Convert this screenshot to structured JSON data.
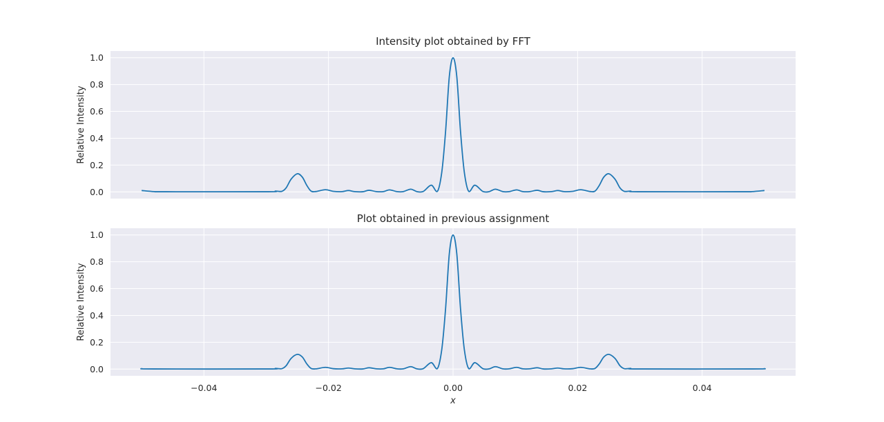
{
  "chart_data": [
    {
      "type": "line",
      "title": "Intensity plot obtained by FFT",
      "xlabel": "",
      "ylabel": "Relative Intensity",
      "xlim": [
        -0.055,
        0.055
      ],
      "ylim": [
        -0.05,
        1.05
      ],
      "xticks": [
        -0.04,
        -0.02,
        0.0,
        0.02,
        0.04
      ],
      "xtick_labels": [],
      "yticks": [
        0.0,
        0.2,
        0.4,
        0.6,
        0.8,
        1.0
      ],
      "ytick_labels": [
        "0.0",
        "0.2",
        "0.4",
        "0.6",
        "0.8",
        "1.0"
      ],
      "grid": true,
      "background": "#eaeaf2",
      "line_color": "#1f77b4",
      "series": [
        {
          "x_range": [
            -0.05,
            0.05
          ],
          "points": [
            [
              -0.05,
              0.01
            ],
            [
              -0.048,
              0.002
            ],
            [
              -0.046,
              0.001
            ],
            [
              -0.03,
              0.001
            ],
            [
              -0.0285,
              0.006
            ],
            [
              -0.0275,
              0.004
            ],
            [
              -0.0268,
              0.03
            ],
            [
              -0.026,
              0.095
            ],
            [
              -0.025,
              0.135
            ],
            [
              -0.0242,
              0.11
            ],
            [
              -0.0235,
              0.05
            ],
            [
              -0.0228,
              0.006
            ],
            [
              -0.022,
              0.003
            ],
            [
              -0.0205,
              0.016
            ],
            [
              -0.0192,
              0.004
            ],
            [
              -0.0178,
              0.002
            ],
            [
              -0.0168,
              0.01
            ],
            [
              -0.0158,
              0.002
            ],
            [
              -0.0145,
              0.001
            ],
            [
              -0.0135,
              0.012
            ],
            [
              -0.0123,
              0.002
            ],
            [
              -0.0112,
              0.002
            ],
            [
              -0.0102,
              0.015
            ],
            [
              -0.009,
              0.002
            ],
            [
              -0.008,
              0.002
            ],
            [
              -0.0068,
              0.02
            ],
            [
              -0.0058,
              0.002
            ],
            [
              -0.0048,
              0.003
            ],
            [
              -0.0035,
              0.05
            ],
            [
              -0.0025,
              0.005
            ],
            [
              -0.0018,
              0.15
            ],
            [
              -0.0012,
              0.45
            ],
            [
              -0.0006,
              0.86
            ],
            [
              0.0,
              1.0
            ],
            [
              0.0006,
              0.86
            ],
            [
              0.0012,
              0.45
            ],
            [
              0.0018,
              0.15
            ],
            [
              0.0025,
              0.005
            ],
            [
              0.0035,
              0.05
            ],
            [
              0.0048,
              0.003
            ],
            [
              0.0058,
              0.002
            ],
            [
              0.0068,
              0.02
            ],
            [
              0.008,
              0.002
            ],
            [
              0.009,
              0.002
            ],
            [
              0.0102,
              0.015
            ],
            [
              0.0112,
              0.002
            ],
            [
              0.0123,
              0.002
            ],
            [
              0.0135,
              0.012
            ],
            [
              0.0145,
              0.001
            ],
            [
              0.0158,
              0.002
            ],
            [
              0.0168,
              0.01
            ],
            [
              0.0178,
              0.002
            ],
            [
              0.0192,
              0.004
            ],
            [
              0.0205,
              0.016
            ],
            [
              0.022,
              0.003
            ],
            [
              0.0228,
              0.006
            ],
            [
              0.0235,
              0.05
            ],
            [
              0.0242,
              0.11
            ],
            [
              0.025,
              0.135
            ],
            [
              0.026,
              0.095
            ],
            [
              0.0268,
              0.03
            ],
            [
              0.0275,
              0.004
            ],
            [
              0.0285,
              0.006
            ],
            [
              0.03,
              0.001
            ],
            [
              0.046,
              0.001
            ],
            [
              0.048,
              0.002
            ],
            [
              0.05,
              0.01
            ]
          ]
        }
      ]
    },
    {
      "type": "line",
      "title": "Plot obtained in previous assignment",
      "xlabel": "x",
      "ylabel": "Relative Intensity",
      "xlim": [
        -0.055,
        0.055
      ],
      "ylim": [
        -0.05,
        1.05
      ],
      "xticks": [
        -0.04,
        -0.02,
        0.0,
        0.02,
        0.04
      ],
      "xtick_labels": [
        "−0.04",
        "−0.02",
        "0.00",
        "0.02",
        "0.04"
      ],
      "yticks": [
        0.0,
        0.2,
        0.4,
        0.6,
        0.8,
        1.0
      ],
      "ytick_labels": [
        "0.0",
        "0.2",
        "0.4",
        "0.6",
        "0.8",
        "1.0"
      ],
      "grid": true,
      "background": "#eaeaf2",
      "line_color": "#1f77b4",
      "series": [
        {
          "x_range": [
            -0.05,
            0.05
          ],
          "points": [
            [
              -0.05,
              0.004
            ],
            [
              -0.048,
              0.001
            ],
            [
              -0.03,
              0.001
            ],
            [
              -0.0285,
              0.005
            ],
            [
              -0.0275,
              0.003
            ],
            [
              -0.0268,
              0.025
            ],
            [
              -0.026,
              0.08
            ],
            [
              -0.025,
              0.11
            ],
            [
              -0.0242,
              0.09
            ],
            [
              -0.0235,
              0.04
            ],
            [
              -0.0228,
              0.005
            ],
            [
              -0.022,
              0.002
            ],
            [
              -0.0205,
              0.013
            ],
            [
              -0.0192,
              0.003
            ],
            [
              -0.0178,
              0.002
            ],
            [
              -0.0168,
              0.008
            ],
            [
              -0.0158,
              0.002
            ],
            [
              -0.0145,
              0.001
            ],
            [
              -0.0135,
              0.01
            ],
            [
              -0.0123,
              0.002
            ],
            [
              -0.0112,
              0.002
            ],
            [
              -0.0102,
              0.013
            ],
            [
              -0.009,
              0.002
            ],
            [
              -0.008,
              0.002
            ],
            [
              -0.0068,
              0.018
            ],
            [
              -0.0058,
              0.002
            ],
            [
              -0.0048,
              0.003
            ],
            [
              -0.0035,
              0.048
            ],
            [
              -0.0025,
              0.005
            ],
            [
              -0.0018,
              0.15
            ],
            [
              -0.0012,
              0.45
            ],
            [
              -0.0006,
              0.86
            ],
            [
              0.0,
              1.0
            ],
            [
              0.0006,
              0.86
            ],
            [
              0.0012,
              0.45
            ],
            [
              0.0018,
              0.15
            ],
            [
              0.0025,
              0.005
            ],
            [
              0.0035,
              0.048
            ],
            [
              0.0048,
              0.003
            ],
            [
              0.0058,
              0.002
            ],
            [
              0.0068,
              0.018
            ],
            [
              0.008,
              0.002
            ],
            [
              0.009,
              0.002
            ],
            [
              0.0102,
              0.013
            ],
            [
              0.0112,
              0.002
            ],
            [
              0.0123,
              0.002
            ],
            [
              0.0135,
              0.01
            ],
            [
              0.0145,
              0.001
            ],
            [
              0.0158,
              0.002
            ],
            [
              0.0168,
              0.008
            ],
            [
              0.0178,
              0.002
            ],
            [
              0.0192,
              0.003
            ],
            [
              0.0205,
              0.013
            ],
            [
              0.022,
              0.002
            ],
            [
              0.0228,
              0.005
            ],
            [
              0.0235,
              0.04
            ],
            [
              0.0242,
              0.09
            ],
            [
              0.025,
              0.11
            ],
            [
              0.026,
              0.08
            ],
            [
              0.0268,
              0.025
            ],
            [
              0.0275,
              0.003
            ],
            [
              0.0285,
              0.005
            ],
            [
              0.03,
              0.001
            ],
            [
              0.048,
              0.001
            ],
            [
              0.05,
              0.004
            ]
          ]
        }
      ]
    }
  ]
}
